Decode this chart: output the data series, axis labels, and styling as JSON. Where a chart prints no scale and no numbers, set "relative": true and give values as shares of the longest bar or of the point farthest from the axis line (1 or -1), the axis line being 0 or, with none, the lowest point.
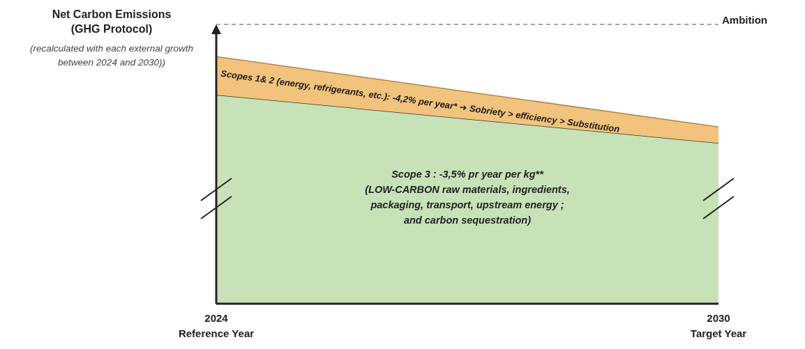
{
  "chart_data": {
    "type": "area",
    "stacked": true,
    "relative": true,
    "ylabel": "Net Carbon Emissions\n(GHG Protocol)",
    "categories": [
      "2024\nReference Year",
      "2030\nTarget Year"
    ],
    "series": [
      {
        "color": "#c8e2b8",
        "values": [
          0.845,
          0.65
        ]
      },
      {
        "color": "#f2c37c",
        "values": [
          0.155,
          0.065
        ]
      }
    ],
    "ref_lines": [
      {
        "axis": "y",
        "value": 1.13,
        "label": "Ambition",
        "line_style": "dashed",
        "color": "#888888"
      }
    ],
    "annotations": [
      "(recalculated with each external growth between 2024 and 2030))",
      "Scopes 1& 2 (energy, refrigerants, etc.): -4,2% per year* ➔ Sobriety > efficiency > Substitution",
      "Scope 3 : -3,5% pr year per kg**\n(LOW-CARBON raw materials, ingredients,\npackaging, transport, upstream energy ;\nand carbon sequestration)"
    ],
    "legend": false
  }
}
